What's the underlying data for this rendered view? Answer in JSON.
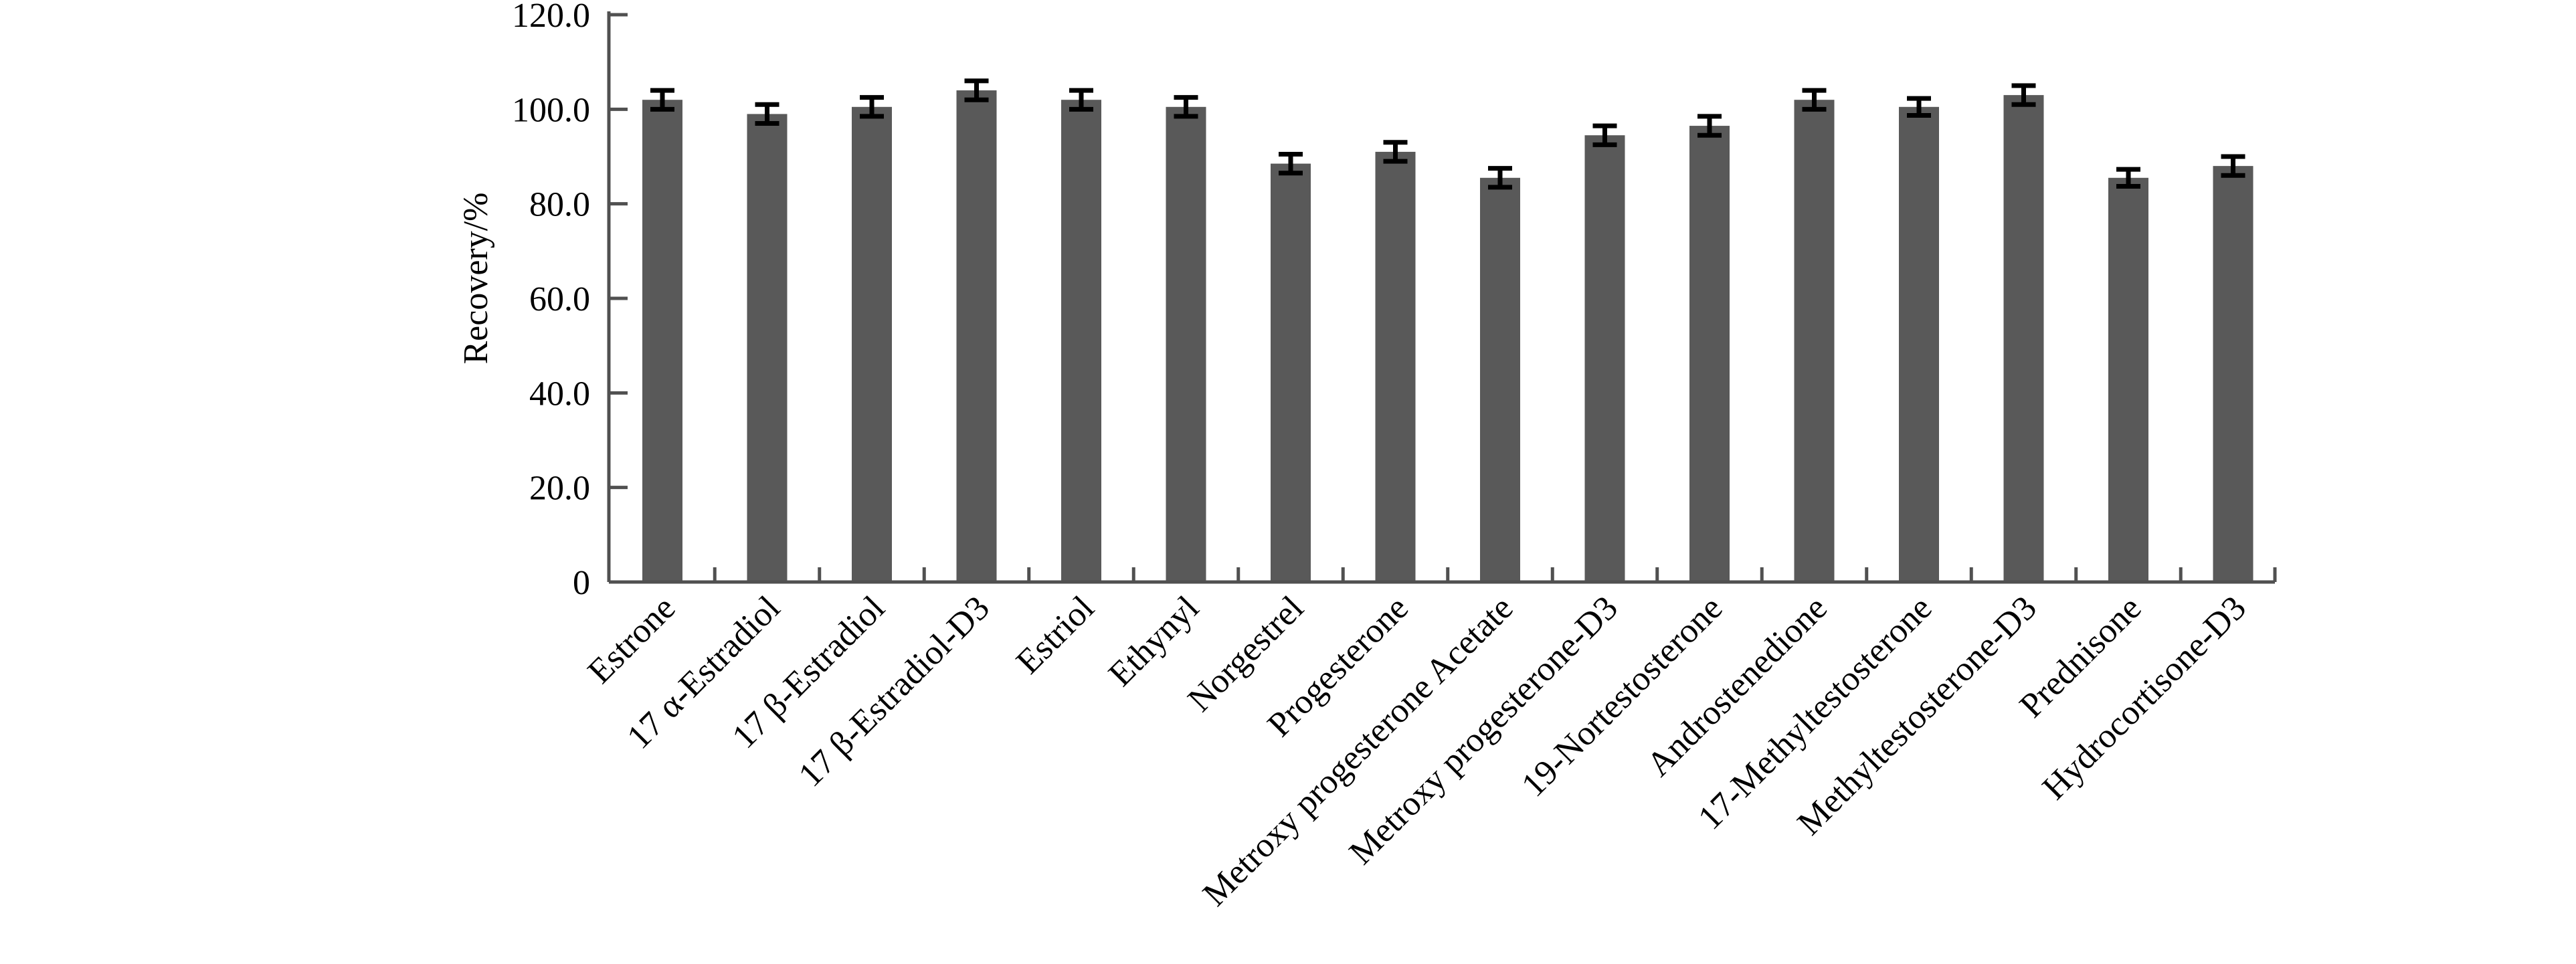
{
  "chart_data": {
    "type": "bar",
    "title": "",
    "xlabel": "",
    "ylabel": "Recovery/%",
    "ylim": [
      0,
      120
    ],
    "yticks": [
      0,
      20,
      40,
      60,
      80,
      100,
      120
    ],
    "ytick_labels": [
      "0",
      "20.0",
      "40.0",
      "60.0",
      "80.0",
      "100.0",
      "120.0"
    ],
    "grid": false,
    "bar_color": "#595959",
    "categories": [
      "Estrone",
      "17 α-Estradiol",
      "17 β-Estradiol",
      "17 β-Estradiol-D3",
      "Estriol",
      "Ethynyl",
      "Norgestrel",
      "Progesterone",
      "Metroxy progesterone Acetate",
      "Metroxy progesterone-D3",
      "19-Nortestosterone",
      "Androstenedione",
      "17-Methyltestosterone",
      "Methyltestosterone-D3",
      "Prednisone",
      "Hydrocortisone-D3"
    ],
    "values": [
      102.0,
      99.0,
      100.5,
      104.0,
      102.0,
      100.5,
      88.5,
      91.0,
      85.5,
      94.5,
      96.5,
      102.0,
      100.5,
      103.0,
      85.5,
      88.0
    ],
    "errors": [
      2.0,
      2.0,
      2.0,
      2.0,
      2.0,
      2.0,
      2.0,
      2.0,
      2.0,
      2.0,
      2.0,
      2.0,
      1.8,
      2.0,
      1.8,
      2.0
    ]
  }
}
